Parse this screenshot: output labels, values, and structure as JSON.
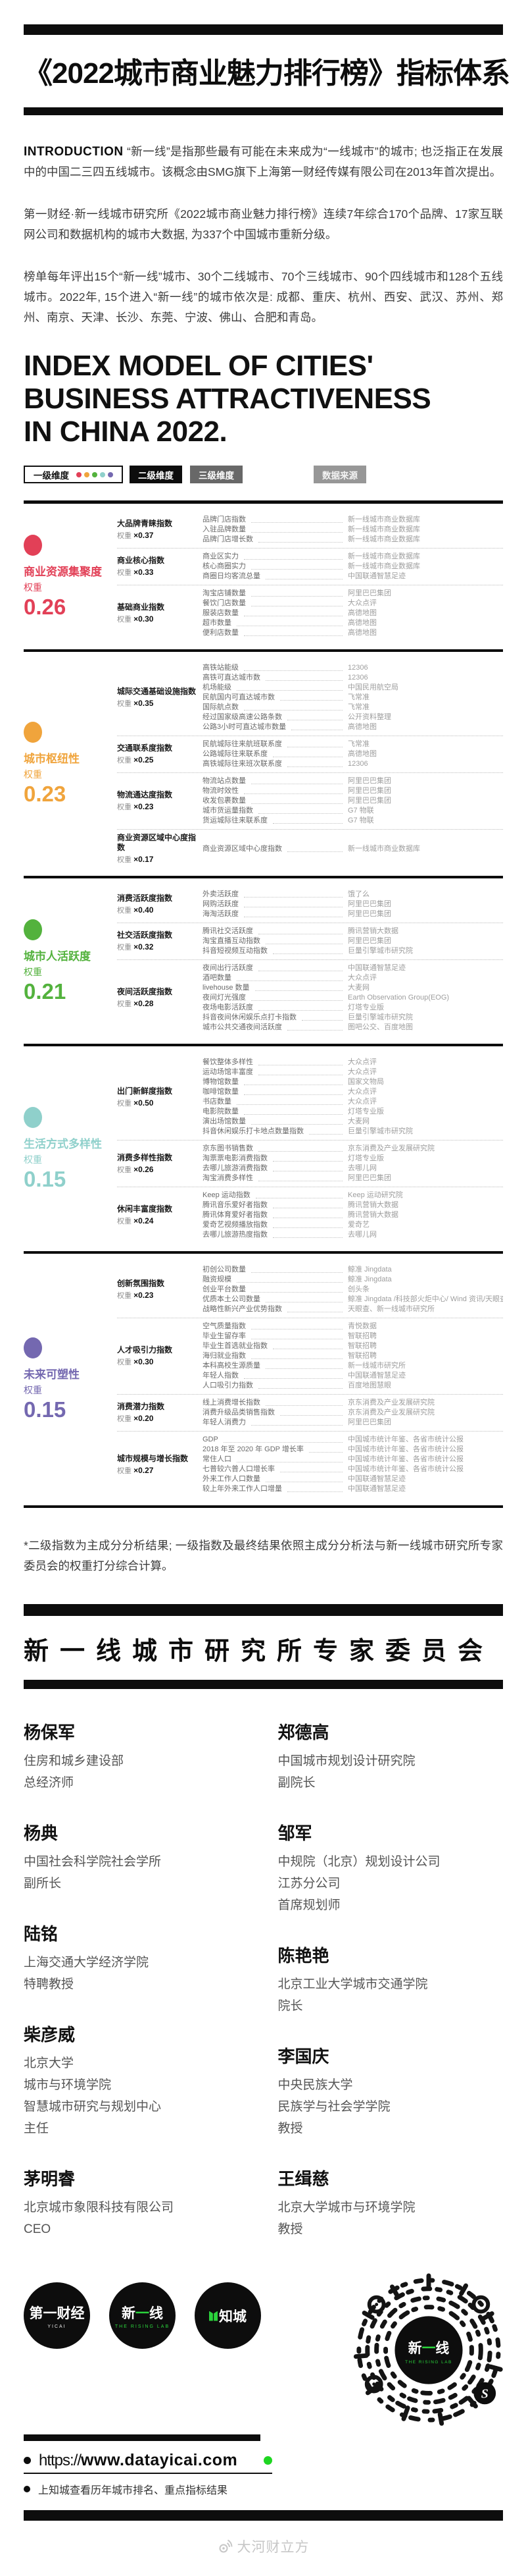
{
  "title": "《2022城市商业魅力排行榜》指标体系",
  "intro": {
    "label": "INTRODUCTION",
    "p1": "“新一线”是指那些最有可能在未来成为“一线城市”的城市; 也泛指正在发展中的中国二三四五线城市。该概念由SMG旗下上海第一财经传媒有限公司在2013年首次提出。",
    "p2": "第一财经·新一线城市研究所《2022城市商业魅力排行榜》连续7年综合170个品牌、17家互联网公司和数据机构的城市大数据, 为337个中国城市重新分级。",
    "p3": "榜单每年评出15个“新一线”城市、30个二线城市、70个三线城市、90个四线城市和128个五线城市。2022年, 15个进入“新一线”的城市依次是: 成都、重庆、杭州、西安、武汉、苏州、郑州、南京、天津、长沙、东莞、宁波、佛山、合肥和青岛。"
  },
  "heading_en": {
    "l1": "INDEX MODEL OF CITIES'",
    "l2": "BUSINESS ATTRACTIVENESS",
    "l3": "IN CHINA 2022."
  },
  "legend": {
    "level1": "一级维度",
    "level2": "二级维度",
    "level3": "三级维度",
    "source": "数据来源",
    "dots": [
      "#e24057",
      "#f0a43c",
      "#53b23d",
      "#8fd0cb",
      "#7468b0"
    ]
  },
  "table": {
    "sections": [
      {
        "color": "#e24057",
        "name": "商业资源集聚度",
        "weight_label": "权重",
        "weight": "0.26",
        "groups": [
          {
            "name": "大品牌青睐指数",
            "wl": "权重",
            "wv": "×0.37",
            "rows": [
              [
                "品牌门店指数",
                "新一线城市商业数据库"
              ],
              [
                "入驻品牌数量",
                "新一线城市商业数据库"
              ],
              [
                "品牌门店增长数",
                "新一线城市商业数据库"
              ]
            ]
          },
          {
            "name": "商业核心指数",
            "wl": "权重",
            "wv": "×0.33",
            "rows": [
              [
                "商业区实力",
                "新一线城市商业数据库"
              ],
              [
                "核心商圈实力",
                "新一线城市商业数据库"
              ],
              [
                "商圈日均客流总量",
                "中国联通智慧足迹"
              ]
            ]
          },
          {
            "name": "基础商业指数",
            "wl": "权重",
            "wv": "×0.30",
            "rows": [
              [
                "淘宝店铺数量",
                "阿里巴巴集团"
              ],
              [
                "餐饮门店数量",
                "大众点评"
              ],
              [
                "服装店数量",
                "高德地图"
              ],
              [
                "超市数量",
                "高德地图"
              ],
              [
                "便利店数量",
                "高德地图"
              ]
            ]
          }
        ]
      },
      {
        "color": "#f0a43c",
        "name": "城市枢纽性",
        "weight_label": "权重",
        "weight": "0.23",
        "groups": [
          {
            "name": "城际交通基础设施指数",
            "wl": "权重",
            "wv": "×0.35",
            "rows": [
              [
                "高铁站能级",
                "12306"
              ],
              [
                "高铁可直达城市数",
                "12306"
              ],
              [
                "机场能级",
                "中国民用航空局"
              ],
              [
                "民航国内可直达城市数",
                "飞常准"
              ],
              [
                "国际航点数",
                "飞常准"
              ],
              [
                "经过国家级高速公路条数",
                "公开资料整理"
              ],
              [
                "公路3小时可直达城市数量",
                "高德地图"
              ]
            ]
          },
          {
            "name": "交通联系度指数",
            "wl": "权重",
            "wv": "×0.25",
            "rows": [
              [
                "民航城际往来航班联系度",
                "飞常准"
              ],
              [
                "公路城际往来联系度",
                "高德地图"
              ],
              [
                "高铁城际往来班次联系度",
                "12306"
              ]
            ]
          },
          {
            "name": "物流通达度指数",
            "wl": "权重",
            "wv": "×0.23",
            "rows": [
              [
                "物流站点数量",
                "阿里巴巴集团"
              ],
              [
                "物流时效性",
                "阿里巴巴集团"
              ],
              [
                "收发包裹数量",
                "阿里巴巴集团"
              ],
              [
                "城市货运量指数",
                "G7 物联"
              ],
              [
                "货运城际往来联系度",
                "G7 物联"
              ]
            ]
          },
          {
            "name": "商业资源区域中心度指数",
            "wl": "权重",
            "wv": "×0.17",
            "rows": [
              [
                "商业资源区域中心度指数",
                "新一线城市商业数据库"
              ]
            ]
          }
        ]
      },
      {
        "color": "#53b23d",
        "name": "城市人活跃度",
        "weight_label": "权重",
        "weight": "0.21",
        "groups": [
          {
            "name": "消费活跃度指数",
            "wl": "权重",
            "wv": "×0.40",
            "rows": [
              [
                "外卖活跃度",
                "饿了么"
              ],
              [
                "网购活跃度",
                "阿里巴巴集团"
              ],
              [
                "海淘活跃度",
                "阿里巴巴集团"
              ]
            ]
          },
          {
            "name": "社交活跃度指数",
            "wl": "权重",
            "wv": "×0.32",
            "rows": [
              [
                "腾讯社交活跃度",
                "腾讯营销大数据"
              ],
              [
                "淘宝直播互动指数",
                "阿里巴巴集团"
              ],
              [
                "抖音短视频互动指数",
                "巨量引擎城市研究院"
              ]
            ]
          },
          {
            "name": "夜间活跃度指数",
            "wl": "权重",
            "wv": "×0.28",
            "rows": [
              [
                "夜间出行活跃度",
                "中国联通智慧足迹"
              ],
              [
                "酒吧数量",
                "大众点评"
              ],
              [
                "livehouse 数量",
                "大麦网"
              ],
              [
                "夜间灯光强度",
                "Earth Observation Group(EOG)"
              ],
              [
                "夜场电影活跃度",
                "灯塔专业版"
              ],
              [
                "抖音夜间休闲娱乐点打卡指数",
                "巨量引擎城市研究院"
              ],
              [
                "城市公共交通夜间活跃度",
                "图吧公交、百度地图"
              ]
            ]
          }
        ]
      },
      {
        "color": "#8fd0cb",
        "name": "生活方式多样性",
        "weight_label": "权重",
        "weight": "0.15",
        "groups": [
          {
            "name": "出门新鲜度指数",
            "wl": "权重",
            "wv": "×0.50",
            "rows": [
              [
                "餐饮整体多样性",
                "大众点评"
              ],
              [
                "运动场馆丰富度",
                "大众点评"
              ],
              [
                "博物馆数量",
                "国家文物局"
              ],
              [
                "咖啡馆数量",
                "大众点评"
              ],
              [
                "书店数量",
                "大众点评"
              ],
              [
                "电影院数量",
                "灯塔专业版"
              ],
              [
                "演出场馆数量",
                "大麦网"
              ],
              [
                "抖音休闲娱乐打卡地点数量指数",
                "巨量引擎城市研究院"
              ]
            ]
          },
          {
            "name": "消费多样性指数",
            "wl": "权重",
            "wv": "×0.26",
            "rows": [
              [
                "京东图书销售数",
                "京东消费及产业发展研究院"
              ],
              [
                "淘票票电影消费指数",
                "灯塔专业版"
              ],
              [
                "去哪儿旅游消费指数",
                "去哪儿网"
              ],
              [
                "淘宝消费多样性",
                "阿里巴巴集团"
              ]
            ]
          },
          {
            "name": "休闲丰富度指数",
            "wl": "权重",
            "wv": "×0.24",
            "rows": [
              [
                "Keep 运动指数",
                "Keep 运动研究院"
              ],
              [
                "腾讯音乐爱好者指数",
                "腾讯营销大数据"
              ],
              [
                "腾讯体育爱好者指数",
                "腾讯营销大数据"
              ],
              [
                "爱奇艺视频播放指数",
                "爱奇艺"
              ],
              [
                "去哪儿旅游热度指数",
                "去哪儿网"
              ]
            ]
          }
        ]
      },
      {
        "color": "#7468b0",
        "name": "未来可塑性",
        "weight_label": "权重",
        "weight": "0.15",
        "groups": [
          {
            "name": "创新氛围指数",
            "wl": "权重",
            "wv": "×0.23",
            "rows": [
              [
                "初创公司数量",
                "鲸准 Jingdata"
              ],
              [
                "融资规模",
                "鲸准 Jingdata"
              ],
              [
                "创业平台数量",
                "创头条"
              ],
              [
                "优质本土公司数量",
                "鲸准 Jingdata /科技部火炬中心/ Wind 资讯/天眼查"
              ],
              [
                "战略性新兴产业优势指数",
                "天眼查、新一线城市研究所"
              ]
            ]
          },
          {
            "name": "人才吸引力指数",
            "wl": "权重",
            "wv": "×0.30",
            "rows": [
              [
                "空气质量指数",
                "青悦数据"
              ],
              [
                "毕业生留存率",
                "智联招聘"
              ],
              [
                "毕业生首选就业指数",
                "智联招聘"
              ],
              [
                "海归就业指数",
                "智联招聘"
              ],
              [
                "本科高校生源质量",
                "新一线城市研究所"
              ],
              [
                "年轻人指数",
                "中国联通智慧足迹"
              ],
              [
                "人口吸引力指数",
                "百度地图慧眼"
              ]
            ]
          },
          {
            "name": "消费潜力指数",
            "wl": "权重",
            "wv": "×0.20",
            "rows": [
              [
                "线上消费增长指数",
                "京东消费及产业发展研究院"
              ],
              [
                "消费升级品类销售指数",
                "京东消费及产业发展研究院"
              ],
              [
                "年轻人消费力",
                "阿里巴巴集团"
              ]
            ]
          },
          {
            "name": "城市规模与增长指数",
            "wl": "权重",
            "wv": "×0.27",
            "rows": [
              [
                "GDP",
                "中国城市统计年鉴、各省市统计公报"
              ],
              [
                "2018 年至 2020 年 GDP 增长率",
                "中国城市统计年鉴、各省市统计公报"
              ],
              [
                "常住人口",
                "中国城市统计年鉴、各省市统计公报"
              ],
              [
                "七普较六普人口增长率",
                "中国城市统计年鉴、各省市统计公报"
              ],
              [
                "外来工作人口数量",
                "中国联通智慧足迹"
              ],
              [
                "较上年外来工作人口增量",
                "中国联通智慧足迹"
              ]
            ]
          }
        ]
      }
    ]
  },
  "footnote": "*二级指数为主成分分析结果; 一级指数及最终结果依照主成分分析法与新一线城市研究所专家委员会的权重打分综合计算。",
  "committee": {
    "heading": "新一线城市研究所专家委员会",
    "columns": [
      [
        {
          "name": "杨保军",
          "org": [
            "住房和城乡建设部",
            "总经济师"
          ]
        },
        {
          "name": "杨典",
          "org": [
            "中国社会科学院社会学所",
            "副所长"
          ]
        },
        {
          "name": "陆铭",
          "org": [
            "上海交通大学经济学院",
            "特聘教授"
          ]
        },
        {
          "name": "柴彦威",
          "org": [
            "北京大学",
            "城市与环境学院",
            "智慧城市研究与规划中心",
            "主任"
          ]
        },
        {
          "name": "茅明睿",
          "org": [
            "北京城市象限科技有限公司",
            "CEO"
          ]
        }
      ],
      [
        {
          "name": "郑德高",
          "org": [
            "中国城市规划设计研究院",
            "副院长"
          ]
        },
        {
          "name": "邹军",
          "org": [
            "中规院（北京）规划设计公司",
            "江苏分公司",
            "首席规划师"
          ]
        },
        {
          "name": "陈艳艳",
          "org": [
            "北京工业大学城市交通学院",
            "院长"
          ]
        },
        {
          "name": "李国庆",
          "org": [
            "中央民族大学",
            "民族学与社会学学院",
            "教授"
          ]
        },
        {
          "name": "王缉慈",
          "org": [
            "北京大学城市与环境学院",
            "教授"
          ]
        }
      ]
    ]
  },
  "footer": {
    "logos": [
      {
        "main": "第一财经",
        "accent": "一",
        "sub": "YICAI",
        "mark": false
      },
      {
        "main": "新一线",
        "accent": "一",
        "sub": "THE RISING LAB",
        "mark": false
      },
      {
        "main": "知城",
        "accent": "",
        "sub": "",
        "mark": true
      }
    ],
    "qr_center_main": "新一线",
    "qr_center_sub": "THE RISING LAB",
    "url_scheme": "https://",
    "url_domain": "www.datayicai.com",
    "note": "上知城查看历年城市排名、重点指标结果",
    "watermark": "大河财立方"
  },
  "colors": {
    "accent_green": "#2bd33c",
    "black": "#0d0d0d"
  }
}
